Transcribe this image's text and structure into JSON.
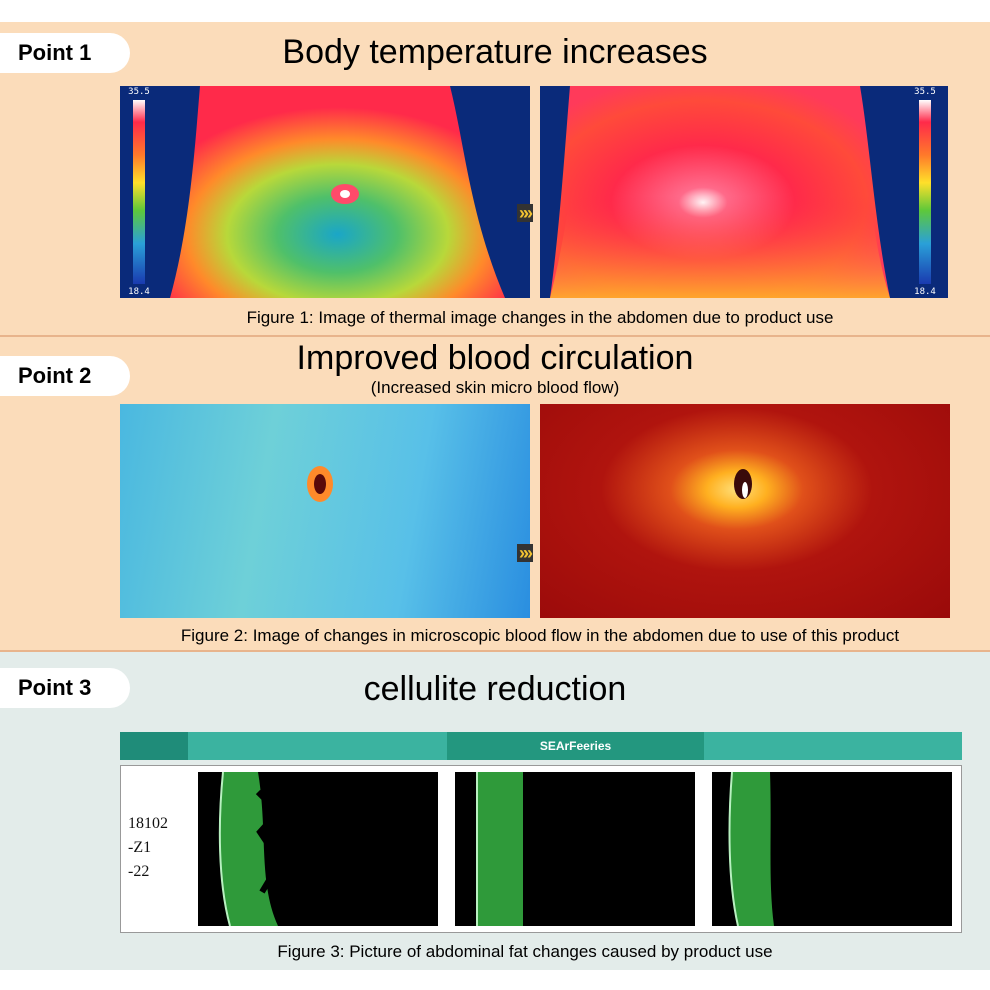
{
  "points": [
    {
      "badge": "Point 1",
      "title": "Body temperature increases",
      "caption": "Figure 1: Image of thermal image changes in the abdomen due to product use",
      "scale_top": "35.5",
      "scale_bottom": "18.4"
    },
    {
      "badge": "Point 2",
      "title": "Improved blood circulation",
      "subtitle": "(Increased skin micro blood flow)",
      "caption": "Figure 2: Image of changes in microscopic blood flow in the abdomen due to use of this product"
    },
    {
      "badge": "Point 3",
      "title": "cellulite reduction",
      "caption": "Figure 3: Picture of abdominal fat changes caused by product use",
      "header_label": "SEArFeeries",
      "sample_label": [
        "18102",
        "-Z1",
        "-22"
      ]
    }
  ],
  "arrow_glyph": "»»",
  "colors": {
    "panel_warm": "#fbdcba",
    "panel_cool": "#e3ecea",
    "teal_header": "#3bb3a0",
    "chevron": "#f1c232"
  }
}
